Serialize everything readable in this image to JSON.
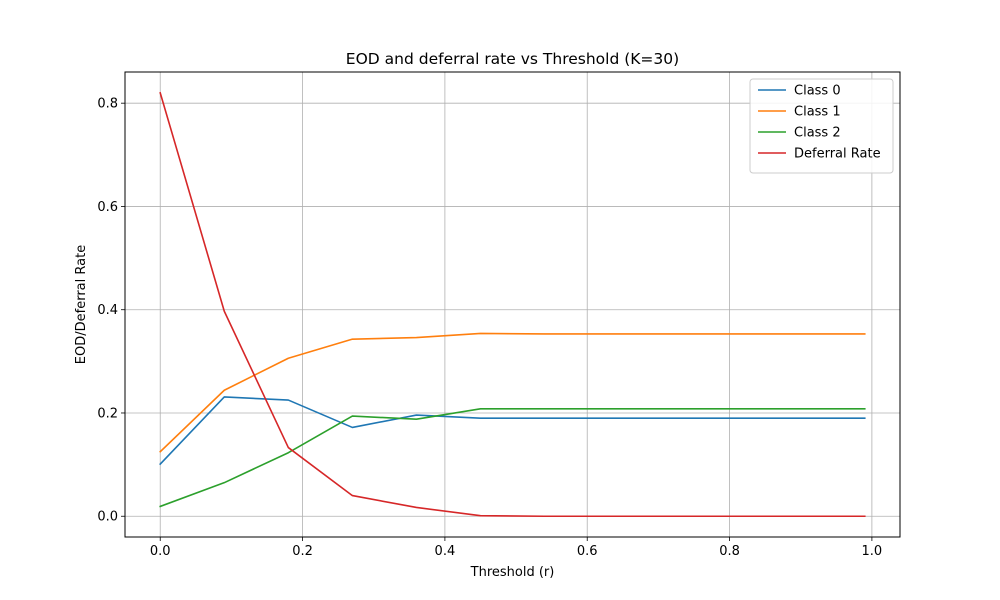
{
  "chart_data": {
    "type": "line",
    "title": "EOD and deferral rate vs Threshold (K=30)",
    "xlabel": "Threshold (r)",
    "ylabel": "EOD/Deferral Rate",
    "xlim": [
      -0.0495,
      1.0395
    ],
    "ylim": [
      -0.0402,
      0.8604
    ],
    "xticks": [
      0.0,
      0.2,
      0.4,
      0.6,
      0.8,
      1.0
    ],
    "xtick_labels": [
      "0.0",
      "0.2",
      "0.4",
      "0.6",
      "0.8",
      "1.0"
    ],
    "yticks": [
      0.0,
      0.2,
      0.4,
      0.6,
      0.8
    ],
    "ytick_labels": [
      "0.0",
      "0.2",
      "0.4",
      "0.6",
      "0.8"
    ],
    "grid": true,
    "legend_position": "top-right",
    "x": [
      0.0,
      0.09,
      0.18,
      0.27,
      0.36,
      0.45,
      0.54,
      0.63,
      0.72,
      0.81,
      0.9,
      0.99
    ],
    "series": [
      {
        "name": "Class 0",
        "color": "#1f77b4",
        "values": [
          0.101,
          0.231,
          0.225,
          0.172,
          0.196,
          0.19,
          0.19,
          0.19,
          0.19,
          0.19,
          0.19,
          0.19
        ]
      },
      {
        "name": "Class 1",
        "color": "#ff7f0e",
        "values": [
          0.125,
          0.244,
          0.306,
          0.343,
          0.346,
          0.354,
          0.353,
          0.353,
          0.353,
          0.353,
          0.353,
          0.353
        ]
      },
      {
        "name": "Class 2",
        "color": "#2ca02c",
        "values": [
          0.019,
          0.065,
          0.123,
          0.194,
          0.188,
          0.208,
          0.208,
          0.208,
          0.208,
          0.208,
          0.208,
          0.208
        ]
      },
      {
        "name": "Deferral Rate",
        "color": "#d62728",
        "values": [
          0.82,
          0.397,
          0.133,
          0.04,
          0.017,
          0.001,
          0.0,
          0.0,
          0.0,
          0.0,
          0.0,
          0.0
        ]
      }
    ]
  }
}
